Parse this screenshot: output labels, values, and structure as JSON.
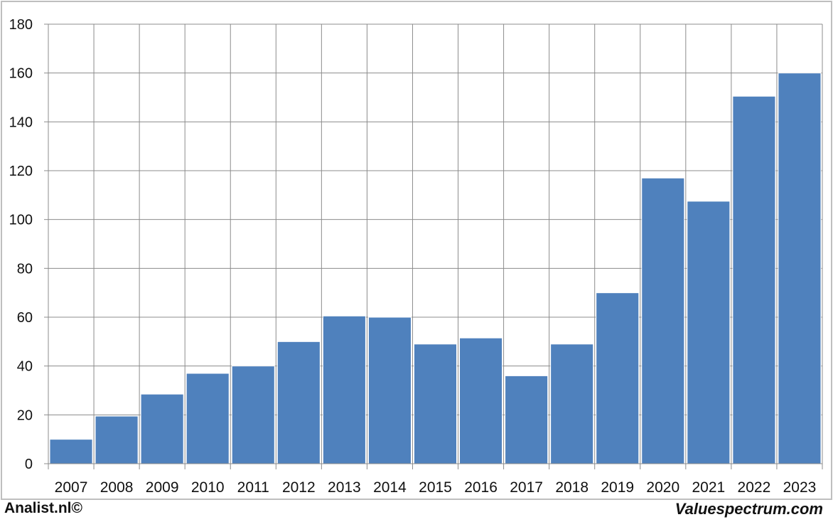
{
  "chart_data": {
    "type": "bar",
    "categories": [
      "2007",
      "2008",
      "2009",
      "2010",
      "2011",
      "2012",
      "2013",
      "2014",
      "2015",
      "2016",
      "2017",
      "2018",
      "2019",
      "2020",
      "2021",
      "2022",
      "2023"
    ],
    "values": [
      10,
      19.5,
      28.5,
      37,
      40,
      50,
      60.5,
      60,
      49,
      51.5,
      36,
      49,
      70,
      117,
      107.5,
      150.5,
      160
    ],
    "ylim": [
      0,
      180
    ],
    "yticks": [
      "0",
      "20",
      "40",
      "60",
      "80",
      "100",
      "120",
      "140",
      "160",
      "180"
    ],
    "grid": true,
    "bar_color": "#4f81bd"
  },
  "footer": {
    "left": "Analist.nl©",
    "right": "Valuespectrum.com"
  }
}
